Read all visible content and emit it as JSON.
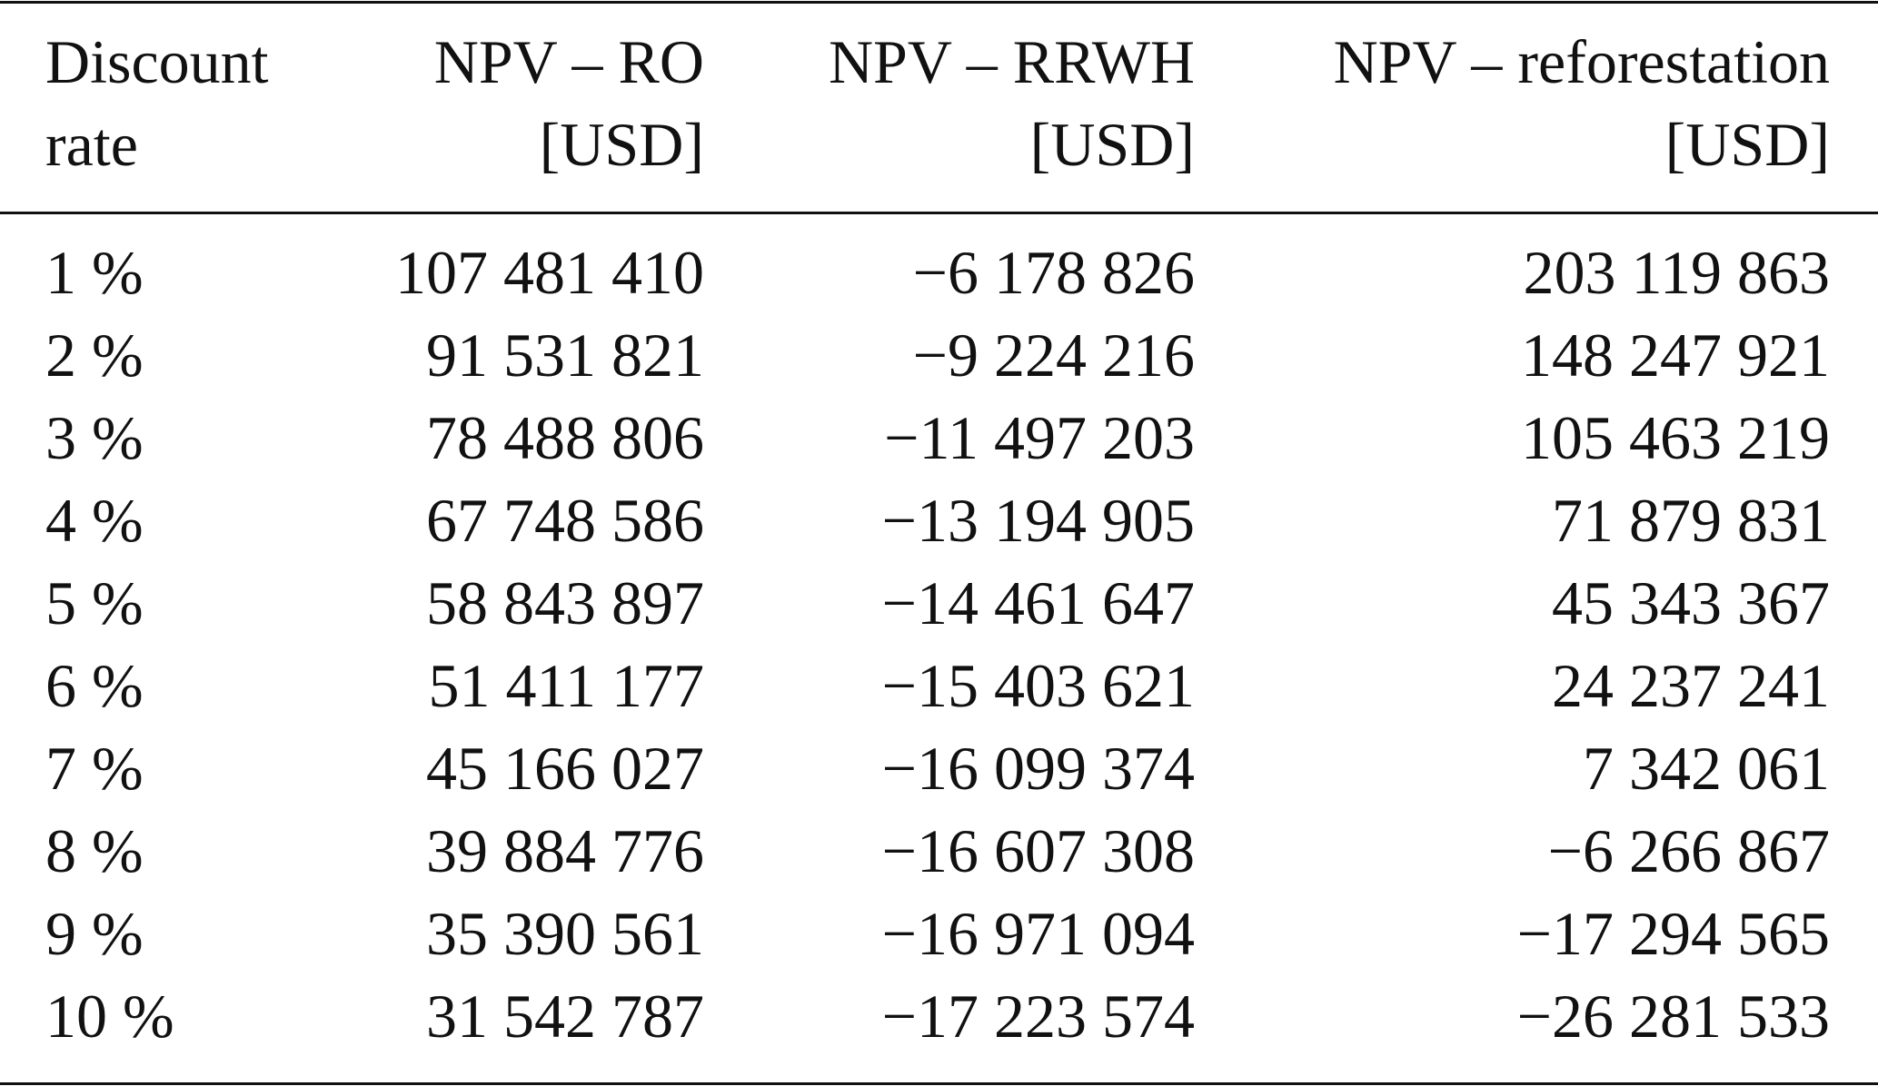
{
  "table": {
    "header": [
      [
        "Discount",
        "rate"
      ],
      [
        "NPV – RO",
        "[USD]"
      ],
      [
        "NPV – RRWH",
        "[USD]"
      ],
      [
        "NPV – reforestation",
        "[USD]"
      ]
    ],
    "rows": [
      [
        "1 %",
        "107 481 410",
        "−6 178 826",
        "203 119 863"
      ],
      [
        "2 %",
        "91 531 821",
        "−9 224 216",
        "148 247 921"
      ],
      [
        "3 %",
        "78 488 806",
        "−11 497 203",
        "105 463 219"
      ],
      [
        "4 %",
        "67 748 586",
        "−13 194 905",
        "71 879 831"
      ],
      [
        "5 %",
        "58 843 897",
        "−14 461 647",
        "45 343 367"
      ],
      [
        "6 %",
        "51 411 177",
        "−15 403 621",
        "24 237 241"
      ],
      [
        "7 %",
        "45 166 027",
        "−16 099 374",
        "7 342 061"
      ],
      [
        "8 %",
        "39 884 776",
        "−16 607 308",
        "−6 266 867"
      ],
      [
        "9 %",
        "35 390 561",
        "−16 971 094",
        "−17 294 565"
      ],
      [
        "10 %",
        "31 542 787",
        "−17 223 574",
        "−26 281 533"
      ]
    ]
  }
}
